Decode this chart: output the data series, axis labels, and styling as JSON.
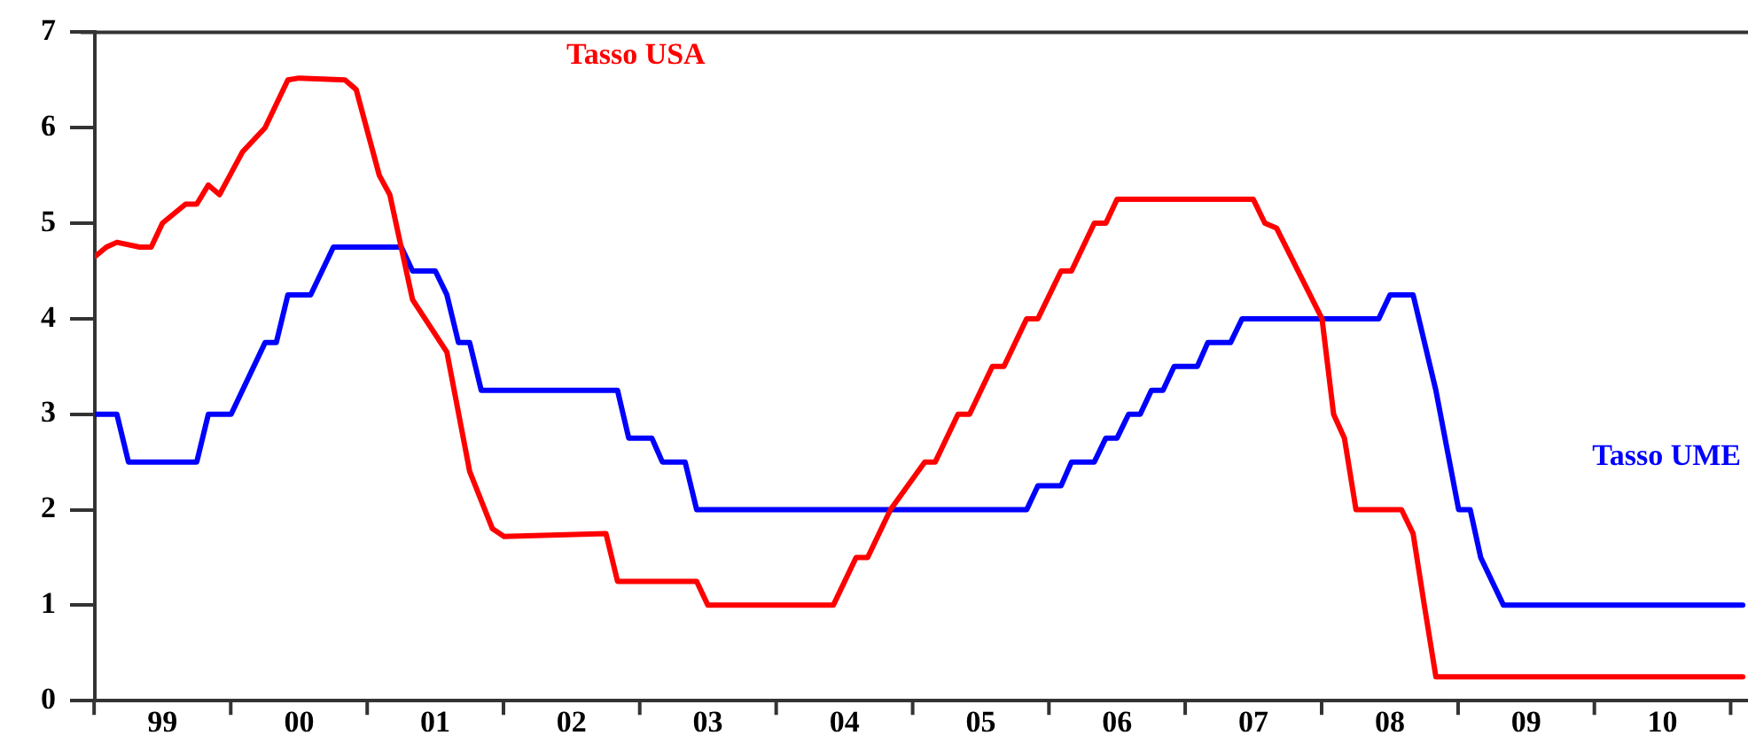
{
  "chart_data": {
    "type": "line",
    "xlim": [
      "1999-01",
      "2011-02-15"
    ],
    "ylim": [
      0,
      7
    ],
    "yticks": [
      0,
      1,
      2,
      3,
      4,
      5,
      6,
      7
    ],
    "xticks": [
      {
        "value": "1999-07",
        "label": "99"
      },
      {
        "value": "2000-07",
        "label": "00"
      },
      {
        "value": "2001-07",
        "label": "01"
      },
      {
        "value": "2002-07",
        "label": "02"
      },
      {
        "value": "2003-07",
        "label": "03"
      },
      {
        "value": "2004-07",
        "label": "04"
      },
      {
        "value": "2005-07",
        "label": "05"
      },
      {
        "value": "2006-07",
        "label": "06"
      },
      {
        "value": "2007-07",
        "label": "07"
      },
      {
        "value": "2008-07",
        "label": "08"
      },
      {
        "value": "2009-07",
        "label": "09"
      },
      {
        "value": "2010-07",
        "label": "10"
      }
    ],
    "grid": false,
    "legend": false,
    "marker": "none",
    "line_style": "solid",
    "series": [
      {
        "name": "Tasso USA",
        "color": "#ff0000",
        "x": [
          "1999-01",
          "1999-02",
          "1999-03",
          "1999-05",
          "1999-06",
          "1999-07",
          "1999-09",
          "1999-10",
          "1999-11",
          "1999-12",
          "2000-02",
          "2000-04",
          "2000-06",
          "2000-07",
          "2000-11",
          "2000-12",
          "2001-02",
          "2001-03",
          "2001-05",
          "2001-08",
          "2001-10",
          "2001-12",
          "2002-01",
          "2002-10",
          "2002-11",
          "2003-06",
          "2003-07",
          "2004-06",
          "2004-08",
          "2004-09",
          "2004-11",
          "2005-02",
          "2005-03",
          "2005-05",
          "2005-06",
          "2005-08",
          "2005-09",
          "2005-11",
          "2005-12",
          "2006-02",
          "2006-03",
          "2006-05",
          "2006-06",
          "2006-07",
          "2007-07",
          "2007-08",
          "2007-09",
          "2008-01",
          "2008-02",
          "2008-03",
          "2008-04",
          "2008-08",
          "2008-09",
          "2008-10",
          "2008-11",
          "2011-02"
        ],
        "values": [
          4.65,
          4.75,
          4.8,
          4.75,
          4.75,
          5.0,
          5.2,
          5.2,
          5.4,
          5.3,
          5.75,
          6.0,
          6.5,
          6.52,
          6.5,
          6.4,
          5.5,
          5.3,
          4.2,
          3.65,
          2.4,
          1.8,
          1.72,
          1.75,
          1.25,
          1.25,
          1.0,
          1.0,
          1.5,
          1.5,
          2.0,
          2.5,
          2.5,
          3.0,
          3.0,
          3.5,
          3.5,
          4.0,
          4.0,
          4.5,
          4.5,
          5.0,
          5.0,
          5.25,
          5.25,
          5.0,
          4.95,
          4.0,
          3.0,
          2.75,
          2.0,
          2.0,
          1.75,
          1.0,
          0.25,
          0.25
        ]
      },
      {
        "name": "Tasso UME",
        "color": "#0000ff",
        "x": [
          "1999-01",
          "1999-03",
          "1999-04",
          "1999-10",
          "1999-11",
          "2000-01",
          "2000-04",
          "2000-05",
          "2000-06",
          "2000-08",
          "2000-10",
          "2001-04",
          "2001-05",
          "2001-07",
          "2001-08",
          "2001-09",
          "2001-10",
          "2001-11",
          "2002-11",
          "2002-12",
          "2003-02",
          "2003-03",
          "2003-05",
          "2003-06",
          "2005-11",
          "2005-12",
          "2006-02",
          "2006-03",
          "2006-05",
          "2006-06",
          "2006-07",
          "2006-08",
          "2006-09",
          "2006-10",
          "2006-11",
          "2006-12",
          "2007-02",
          "2007-03",
          "2007-05",
          "2007-06",
          "2008-06",
          "2008-07",
          "2008-09",
          "2008-11",
          "2009-01",
          "2009-02",
          "2009-03",
          "2009-05",
          "2011-02"
        ],
        "values": [
          3.0,
          3.0,
          2.5,
          2.5,
          3.0,
          3.0,
          3.75,
          3.75,
          4.25,
          4.25,
          4.75,
          4.75,
          4.5,
          4.5,
          4.25,
          3.75,
          3.75,
          3.25,
          3.25,
          2.75,
          2.75,
          2.5,
          2.5,
          2.0,
          2.0,
          2.25,
          2.25,
          2.5,
          2.5,
          2.75,
          2.75,
          3.0,
          3.0,
          3.25,
          3.25,
          3.5,
          3.5,
          3.75,
          3.75,
          4.0,
          4.0,
          4.25,
          4.25,
          3.25,
          2.0,
          2.0,
          1.5,
          1.0,
          1.0
        ]
      }
    ]
  }
}
